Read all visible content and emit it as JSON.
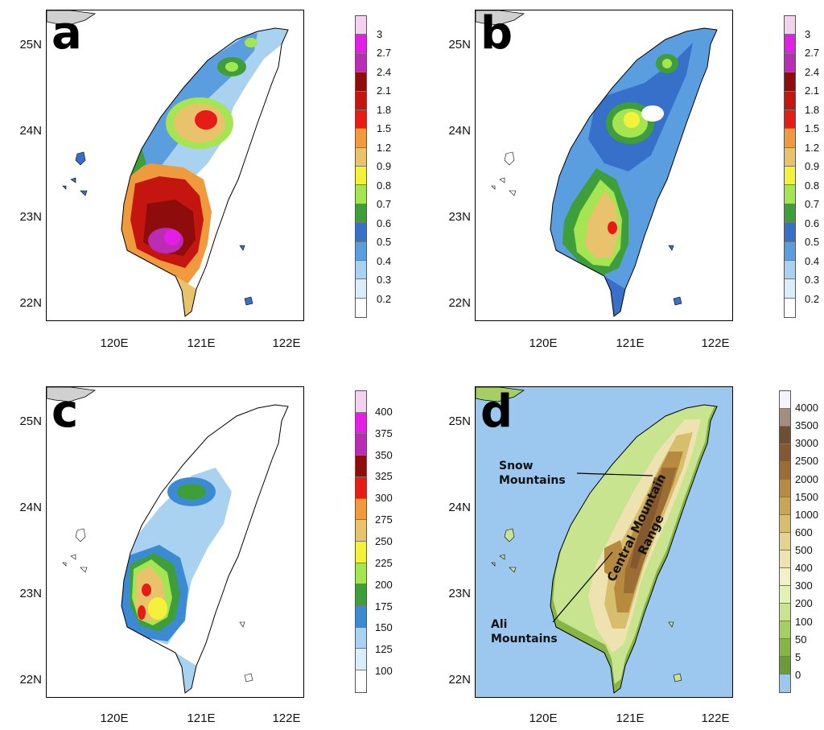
{
  "x_ticks": [
    "120E",
    "121E",
    "122E"
  ],
  "y_ticks": [
    "25N",
    "24N",
    "23N",
    "22N"
  ],
  "panels": [
    {
      "letter": "a",
      "colorbar": {
        "labels": [
          "3",
          "2.7",
          "2.4",
          "2.1",
          "1.8",
          "1.5",
          "1.2",
          "0.9",
          "0.8",
          "0.7",
          "0.6",
          "0.5",
          "0.4",
          "0.3",
          "0.2"
        ],
        "colors": [
          "#f3d2f0",
          "#e21ee7",
          "#b92cb3",
          "#8e0c0c",
          "#c4160f",
          "#e81c17",
          "#ef9b3d",
          "#e9c36b",
          "#f4f13a",
          "#a5e551",
          "#3e9e3a",
          "#3670c9",
          "#5b9ee0",
          "#a9d2f1",
          "#d9eefa",
          "#ffffff"
        ]
      },
      "map_layers": [
        {
          "name": "base",
          "color": "#ffffff"
        },
        {
          "name": "low",
          "color": "#a9d2f1"
        },
        {
          "name": "mid",
          "color": "#3670c9"
        },
        {
          "name": "green",
          "color": "#a5e551"
        },
        {
          "name": "orange",
          "color": "#e9c36b"
        },
        {
          "name": "red",
          "color": "#c4160f"
        },
        {
          "name": "magenta",
          "color": "#b92cb3"
        }
      ]
    },
    {
      "letter": "b",
      "colorbar": {
        "labels": [
          "3",
          "2.7",
          "2.4",
          "2.1",
          "1.8",
          "1.5",
          "1.2",
          "0.9",
          "0.8",
          "0.7",
          "0.6",
          "0.5",
          "0.4",
          "0.3",
          "0.2"
        ],
        "colors": [
          "#f3d2f0",
          "#e21ee7",
          "#b92cb3",
          "#8e0c0c",
          "#c4160f",
          "#e81c17",
          "#ef9b3d",
          "#e9c36b",
          "#f4f13a",
          "#a5e551",
          "#3e9e3a",
          "#3670c9",
          "#5b9ee0",
          "#a9d2f1",
          "#d9eefa",
          "#ffffff"
        ]
      }
    },
    {
      "letter": "c",
      "colorbar": {
        "labels": [
          "400",
          "375",
          "350",
          "325",
          "300",
          "275",
          "250",
          "225",
          "200",
          "175",
          "150",
          "125",
          "100"
        ],
        "colors": [
          "#f3d2f0",
          "#e21ee7",
          "#b92cb3",
          "#8e0c0c",
          "#e81c17",
          "#ef9b3d",
          "#e9c36b",
          "#f4f13a",
          "#a5e551",
          "#3e9e3a",
          "#3c8ad4",
          "#a9d2f1",
          "#d9eefa",
          "#ffffff"
        ]
      }
    },
    {
      "letter": "d",
      "colorbar": {
        "labels": [
          "4000",
          "3500",
          "3000",
          "2500",
          "2000",
          "1500",
          "1000",
          "600",
          "500",
          "400",
          "300",
          "200",
          "100",
          "50",
          "5",
          "0"
        ],
        "colors": [
          "#f3f5fb",
          "#a48d7e",
          "#6f4f33",
          "#84592f",
          "#9b6d34",
          "#b68b3f",
          "#c9a654",
          "#d6be6d",
          "#e3d38e",
          "#eee3b0",
          "#f1f0c6",
          "#e4f1b4",
          "#c8e48e",
          "#a6cf63",
          "#87b543",
          "#6e9b39",
          "#9cc8ef"
        ]
      },
      "labels": {
        "snow": [
          "Snow",
          "Mountains"
        ],
        "ali": [
          "Ali",
          "Mountains"
        ],
        "central": [
          "Central Mountain",
          "Range"
        ]
      }
    }
  ]
}
